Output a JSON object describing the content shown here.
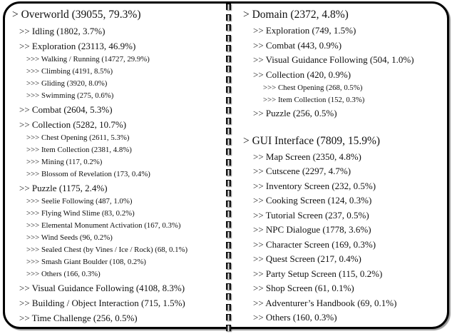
{
  "figure": {
    "left_page": {
      "items": [
        {
          "depth": 1,
          "label": "Overworld",
          "count": "39055",
          "pct": "79.3%"
        },
        {
          "depth": 2,
          "label": "Idling",
          "count": "1802",
          "pct": "3.7%"
        },
        {
          "depth": 2,
          "label": "Exploration",
          "count": "23113",
          "pct": "46.9%"
        },
        {
          "depth": 3,
          "label": "Walking / Running",
          "count": "14727",
          "pct": "29.9%"
        },
        {
          "depth": 3,
          "label": "Climbing",
          "count": "4191",
          "pct": "8.5%"
        },
        {
          "depth": 3,
          "label": "Gliding",
          "count": "3920",
          "pct": "8.0%"
        },
        {
          "depth": 3,
          "label": "Swimming",
          "count": "275",
          "pct": "0.6%"
        },
        {
          "depth": 2,
          "label": "Combat",
          "count": "2604",
          "pct": "5.3%"
        },
        {
          "depth": 2,
          "label": "Collection",
          "count": "5282",
          "pct": "10.7%"
        },
        {
          "depth": 3,
          "label": "Chest Opening",
          "count": "2611",
          "pct": "5.3%"
        },
        {
          "depth": 3,
          "label": "Item Collection",
          "count": "2381",
          "pct": "4.8%"
        },
        {
          "depth": 3,
          "label": "Mining",
          "count": "117",
          "pct": "0.2%"
        },
        {
          "depth": 3,
          "label": "Blossom of Revelation",
          "count": "173",
          "pct": "0.4%"
        },
        {
          "depth": 2,
          "label": "Puzzle",
          "count": "1175",
          "pct": "2.4%"
        },
        {
          "depth": 3,
          "label": "Seelie Following",
          "count": "487",
          "pct": "1.0%"
        },
        {
          "depth": 3,
          "label": "Flying Wind Slime",
          "count": "83",
          "pct": "0.2%"
        },
        {
          "depth": 3,
          "label": "Elemental Monument Activation",
          "count": "167",
          "pct": "0.3%"
        },
        {
          "depth": 3,
          "label": "Wind Seeds",
          "count": "96",
          "pct": "0.2%"
        },
        {
          "depth": 3,
          "label": "Sealed Chest (by Vines / Ice / Rock)",
          "count": "68",
          "pct": "0.1%"
        },
        {
          "depth": 3,
          "label": "Smash Giant Boulder",
          "count": "108",
          "pct": "0.2%"
        },
        {
          "depth": 3,
          "label": "Others",
          "count": "166",
          "pct": "0.3%"
        },
        {
          "depth": 2,
          "label": "Visual Guidance Following",
          "count": "4108",
          "pct": "8.3%"
        },
        {
          "depth": 2,
          "label": "Building / Object Interaction",
          "count": "715",
          "pct": "1.5%"
        },
        {
          "depth": 2,
          "label": "Time Challenge",
          "count": "256",
          "pct": "0.5%"
        }
      ]
    },
    "right_page": {
      "sections": [
        {
          "items": [
            {
              "depth": 1,
              "label": "Domain",
              "count": "2372",
              "pct": "4.8%"
            },
            {
              "depth": 2,
              "label": "Exploration",
              "count": "749",
              "pct": "1.5%"
            },
            {
              "depth": 2,
              "label": "Combat",
              "count": "443",
              "pct": "0.9%"
            },
            {
              "depth": 2,
              "label": "Visual Guidance Following",
              "count": "504",
              "pct": "1.0%"
            },
            {
              "depth": 2,
              "label": "Collection",
              "count": "420",
              "pct": "0.9%"
            },
            {
              "depth": 3,
              "label": "Chest Opening",
              "count": "268",
              "pct": "0.5%"
            },
            {
              "depth": 3,
              "label": "Item Collection",
              "count": "152",
              "pct": "0.3%"
            },
            {
              "depth": 2,
              "label": "Puzzle",
              "count": "256",
              "pct": "0.5%"
            }
          ]
        },
        {
          "items": [
            {
              "depth": 1,
              "label": "GUI Interface",
              "count": "7809",
              "pct": "15.9%"
            },
            {
              "depth": 2,
              "label": "Map Screen",
              "count": "2350",
              "pct": "4.8%"
            },
            {
              "depth": 2,
              "label": "Cutscene",
              "count": "2297",
              "pct": "4.7%"
            },
            {
              "depth": 2,
              "label": "Inventory Screen",
              "count": "232",
              "pct": "0.5%"
            },
            {
              "depth": 2,
              "label": "Cooking Screen",
              "count": "124",
              "pct": "0.3%"
            },
            {
              "depth": 2,
              "label": "Tutorial Screen",
              "count": "237",
              "pct": "0.5%"
            },
            {
              "depth": 2,
              "label": "NPC Dialogue",
              "count": "1778",
              "pct": "3.6%"
            },
            {
              "depth": 2,
              "label": "Character Screen",
              "count": "169",
              "pct": "0.3%"
            },
            {
              "depth": 2,
              "label": "Quest Screen",
              "count": "217",
              "pct": "0.4%"
            },
            {
              "depth": 2,
              "label": "Party Setup Screen",
              "count": "115",
              "pct": "0.2%"
            },
            {
              "depth": 2,
              "label": "Shop Screen",
              "count": "61",
              "pct": "0.1%"
            },
            {
              "depth": 2,
              "label": "Adventurer’s Handbook",
              "count": "69",
              "pct": "0.1%"
            },
            {
              "depth": 2,
              "label": "Others",
              "count": "160",
              "pct": "0.3%"
            }
          ]
        }
      ]
    },
    "binding": {
      "ring_count": 32
    },
    "colors": {
      "border": "#000000",
      "text": "#111111",
      "background": "#ffffff",
      "ring_dark": "#141414",
      "ring_light": "#e8e8e8"
    }
  }
}
